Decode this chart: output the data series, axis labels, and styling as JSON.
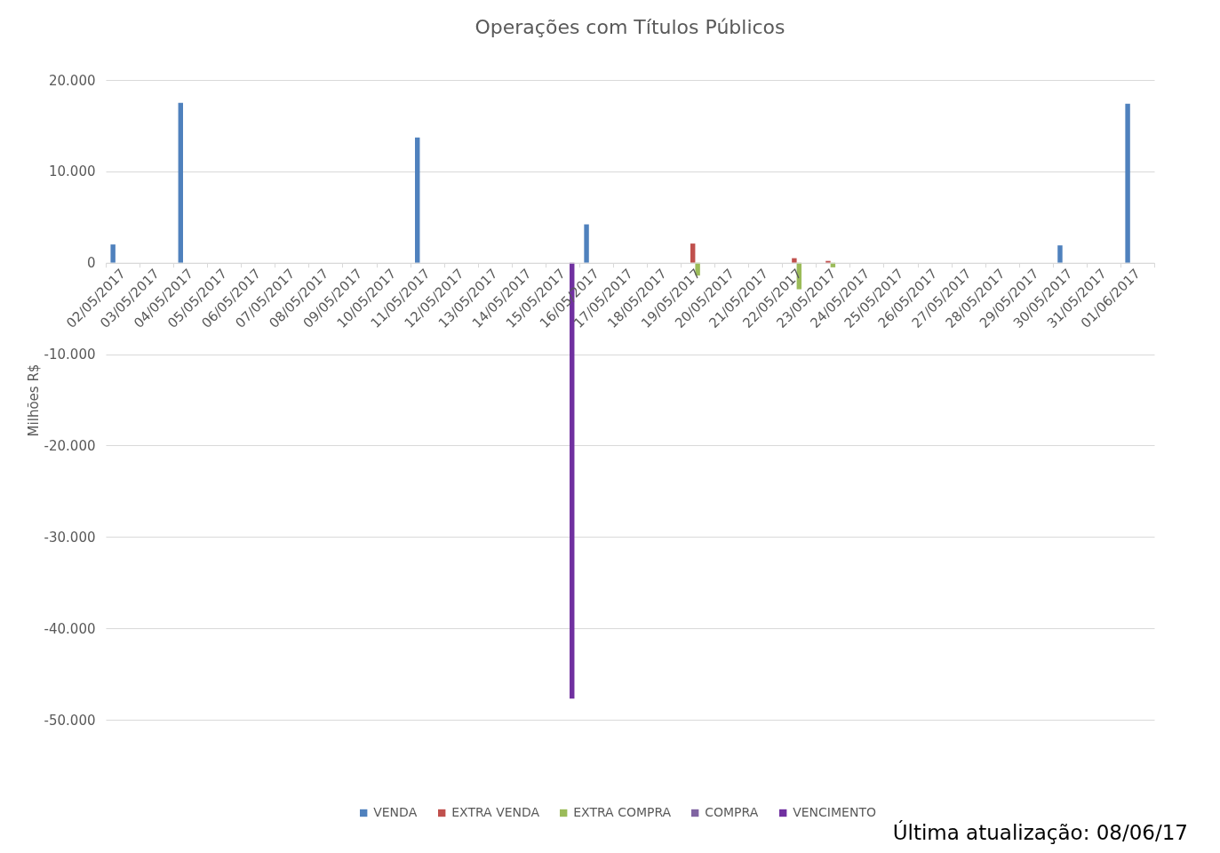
{
  "chart_data": {
    "type": "bar",
    "title": "Operações  com Títulos Públicos",
    "ylabel": "Milhões R$",
    "categories": [
      "02/05/2017",
      "03/05/2017",
      "04/05/2017",
      "05/05/2017",
      "06/05/2017",
      "07/05/2017",
      "08/05/2017",
      "09/05/2017",
      "10/05/2017",
      "11/05/2017",
      "12/05/2017",
      "13/05/2017",
      "14/05/2017",
      "15/05/2017",
      "16/05/2017",
      "17/05/2017",
      "18/05/2017",
      "19/05/2017",
      "20/05/2017",
      "21/05/2017",
      "22/05/2017",
      "23/05/2017",
      "24/05/2017",
      "25/05/2017",
      "26/05/2017",
      "27/05/2017",
      "28/05/2017",
      "29/05/2017",
      "30/05/2017",
      "31/05/2017",
      "01/06/2017"
    ],
    "series": [
      {
        "name": "VENDA",
        "color": "#4f81bd",
        "values": [
          2000,
          null,
          17500,
          null,
          null,
          null,
          null,
          null,
          null,
          13700,
          null,
          null,
          null,
          null,
          4200,
          null,
          null,
          null,
          null,
          null,
          null,
          null,
          null,
          null,
          null,
          null,
          null,
          null,
          1900,
          null,
          17400
        ]
      },
      {
        "name": "EXTRA VENDA",
        "color": "#c0504d",
        "values": [
          null,
          null,
          null,
          null,
          null,
          null,
          null,
          null,
          null,
          null,
          null,
          null,
          null,
          null,
          null,
          null,
          null,
          2100,
          null,
          null,
          500,
          200,
          null,
          null,
          null,
          null,
          null,
          null,
          null,
          null,
          null
        ]
      },
      {
        "name": "EXTRA COMPRA",
        "color": "#9bbb59",
        "values": [
          null,
          null,
          null,
          null,
          null,
          null,
          null,
          null,
          null,
          null,
          null,
          null,
          null,
          null,
          null,
          null,
          null,
          -1400,
          null,
          null,
          -2900,
          -500,
          null,
          null,
          null,
          null,
          null,
          null,
          null,
          null,
          null
        ]
      },
      {
        "name": "COMPRA",
        "color": "#8064a2",
        "values": [
          null,
          null,
          null,
          null,
          null,
          null,
          null,
          null,
          null,
          null,
          null,
          null,
          null,
          null,
          null,
          null,
          null,
          null,
          null,
          null,
          null,
          null,
          null,
          null,
          null,
          null,
          null,
          null,
          null,
          null,
          null
        ]
      },
      {
        "name": "VENCIMENTO",
        "color": "#7030a0",
        "values": [
          null,
          null,
          null,
          null,
          null,
          null,
          null,
          null,
          null,
          null,
          null,
          null,
          null,
          -47700,
          null,
          null,
          null,
          null,
          null,
          null,
          null,
          null,
          null,
          null,
          null,
          null,
          null,
          null,
          null,
          null,
          null
        ]
      }
    ],
    "ylim": [
      -50000,
      20000
    ],
    "yticks": [
      {
        "value": -50000,
        "label": "-50.000"
      },
      {
        "value": -40000,
        "label": "-40.000"
      },
      {
        "value": -30000,
        "label": "-30.000"
      },
      {
        "value": -20000,
        "label": "-20.000"
      },
      {
        "value": -10000,
        "label": "-10.000"
      },
      0,
      {
        "value": 10000,
        "label": "10.000"
      },
      {
        "value": 20000,
        "label": "20.000"
      }
    ],
    "grid": "y",
    "legend": "bottom",
    "annotations": [
      "Última atualização: 08/06/17"
    ]
  }
}
